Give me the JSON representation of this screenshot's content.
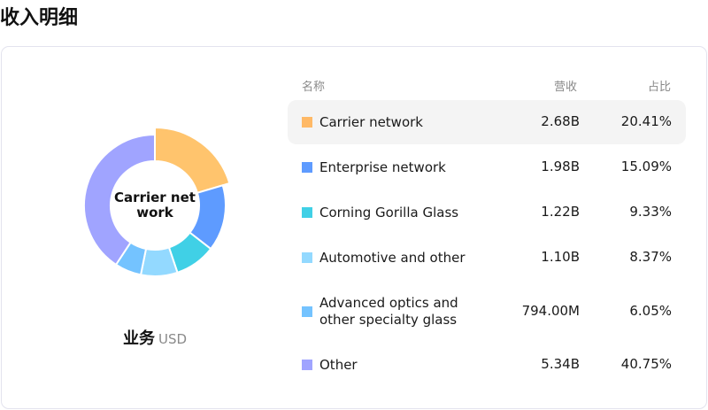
{
  "title": "收入明细",
  "chart_data": {
    "type": "pie",
    "variant": "donut",
    "center_label": "Carrier network",
    "center_label_lines": [
      "Carrier net",
      "work"
    ],
    "categories": [
      "Carrier network",
      "Enterprise network",
      "Corning Gorilla Glass",
      "Automotive and other",
      "Advanced optics and other specialty glass",
      "Other"
    ],
    "values": [
      20.41,
      15.09,
      9.33,
      8.37,
      6.05,
      40.75
    ],
    "colors": [
      "#FFC46D",
      "#5E9BFF",
      "#40D0E6",
      "#93D9FF",
      "#74C3FF",
      "#A0A4FF"
    ],
    "highlighted": "Carrier network"
  },
  "legend_caption": {
    "label": "业务",
    "unit": "USD"
  },
  "table": {
    "headers": {
      "name": "名称",
      "revenue": "营收",
      "share": "占比"
    },
    "rows": [
      {
        "name_lines": [
          "Carrier network"
        ],
        "revenue": "2.68B",
        "share": "20.41%",
        "color": "#FFB966"
      },
      {
        "name_lines": [
          "Enterprise network"
        ],
        "revenue": "1.98B",
        "share": "15.09%",
        "color": "#5E9BFF"
      },
      {
        "name_lines": [
          "Corning Gorilla Glass"
        ],
        "revenue": "1.22B",
        "share": "9.33%",
        "color": "#40D0E6"
      },
      {
        "name_lines": [
          "Automotive and other"
        ],
        "revenue": "1.10B",
        "share": "8.37%",
        "color": "#93D9FF"
      },
      {
        "name_lines": [
          "Advanced optics and",
          "other specialty glass"
        ],
        "revenue": "794.00M",
        "share": "6.05%",
        "color": "#74C3FF"
      },
      {
        "name_lines": [
          "Other"
        ],
        "revenue": "5.34B",
        "share": "40.75%",
        "color": "#A0A4FF"
      }
    ]
  }
}
